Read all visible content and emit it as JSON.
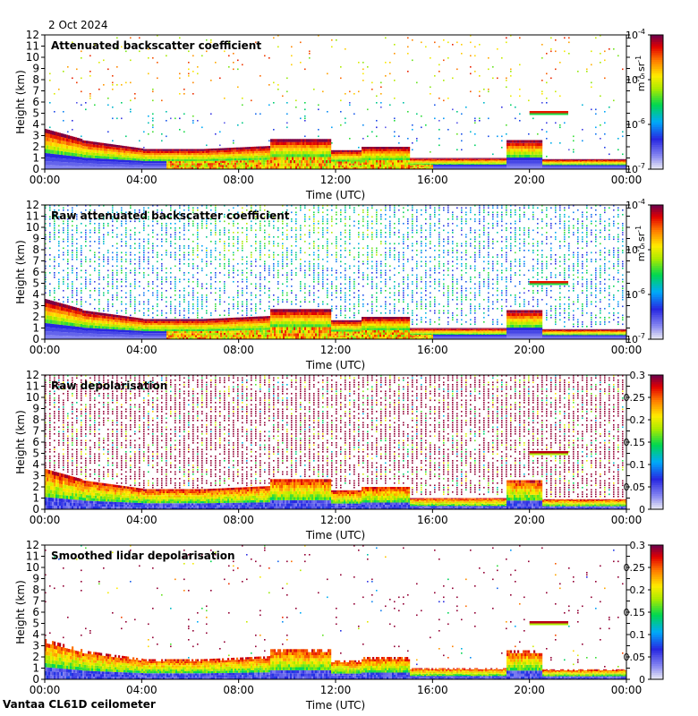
{
  "header": {
    "date": "2 Oct 2024"
  },
  "footer": {
    "site": "Vantaa CL61D ceilometer"
  },
  "chart_data": [
    {
      "type": "heatmap",
      "title": "Attenuated backscatter coefficient",
      "xlabel": "Time (UTC)",
      "ylabel": "Height (km)",
      "x_ticks": [
        "00:00",
        "04:00",
        "08:00",
        "12:00",
        "16:00",
        "20:00",
        "00:00"
      ],
      "y_ticks": [
        0,
        1,
        2,
        3,
        4,
        5,
        6,
        7,
        8,
        9,
        10,
        11,
        12
      ],
      "ylim": [
        0,
        12
      ],
      "colorbar": {
        "scale": "log",
        "range": [
          1e-07,
          0.0001
        ],
        "ticks": [
          "10-7",
          "10-6",
          "10-5",
          "10-4"
        ],
        "unit": "m-1 sr-1"
      },
      "noise": "sparse",
      "features": "low boundary-layer aerosol 0-3 km, cloud layer near 5 km at 20:00-21:30"
    },
    {
      "type": "heatmap",
      "title": "Raw attenuated backscatter coefficient",
      "xlabel": "Time (UTC)",
      "ylabel": "Height (km)",
      "x_ticks": [
        "00:00",
        "04:00",
        "08:00",
        "12:00",
        "16:00",
        "20:00",
        "00:00"
      ],
      "y_ticks": [
        0,
        1,
        2,
        3,
        4,
        5,
        6,
        7,
        8,
        9,
        10,
        11,
        12
      ],
      "ylim": [
        0,
        12
      ],
      "colorbar": {
        "scale": "log",
        "range": [
          1e-07,
          0.0001
        ],
        "ticks": [
          "10-7",
          "10-6",
          "10-5",
          "10-4"
        ],
        "unit": "m-1 sr-1"
      },
      "noise": "dense"
    },
    {
      "type": "heatmap",
      "title": "Raw depolarisation",
      "xlabel": "Time (UTC)",
      "ylabel": "Height (km)",
      "x_ticks": [
        "00:00",
        "04:00",
        "08:00",
        "12:00",
        "16:00",
        "20:00",
        "00:00"
      ],
      "y_ticks": [
        0,
        1,
        2,
        3,
        4,
        5,
        6,
        7,
        8,
        9,
        10,
        11,
        12
      ],
      "ylim": [
        0,
        12
      ],
      "colorbar": {
        "scale": "linear",
        "range": [
          0,
          0.3
        ],
        "ticks": [
          "0",
          "0.05",
          "0.1",
          "0.15",
          "0.2",
          "0.25",
          "0.3"
        ]
      },
      "noise": "saturated"
    },
    {
      "type": "heatmap",
      "title": "Smoothed lidar depolarisation",
      "xlabel": "Time (UTC)",
      "ylabel": "Height (km)",
      "x_ticks": [
        "00:00",
        "04:00",
        "08:00",
        "12:00",
        "16:00",
        "20:00",
        "00:00"
      ],
      "y_ticks": [
        0,
        1,
        2,
        3,
        4,
        5,
        6,
        7,
        8,
        9,
        10,
        11,
        12
      ],
      "ylim": [
        0,
        12
      ],
      "colorbar": {
        "scale": "linear",
        "range": [
          0,
          0.3
        ],
        "ticks": [
          "0",
          "0.05",
          "0.1",
          "0.15",
          "0.2",
          "0.25",
          "0.3"
        ]
      },
      "noise": "sparse-depol"
    }
  ]
}
